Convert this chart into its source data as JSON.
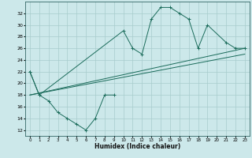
{
  "xlabel": "Humidex (Indice chaleur)",
  "bg_color": "#cce8ea",
  "line_color": "#1a6b5a",
  "grid_color": "#a8cccc",
  "xlim": [
    -0.5,
    23.5
  ],
  "ylim": [
    11,
    34
  ],
  "xticks": [
    0,
    1,
    2,
    3,
    4,
    5,
    6,
    7,
    8,
    9,
    10,
    11,
    12,
    13,
    14,
    15,
    16,
    17,
    18,
    19,
    20,
    21,
    22,
    23
  ],
  "yticks": [
    12,
    14,
    16,
    18,
    20,
    22,
    24,
    26,
    28,
    30,
    32
  ],
  "series": [
    {
      "x": [
        0,
        1,
        2,
        3,
        4,
        5,
        6,
        7,
        8,
        9
      ],
      "y": [
        22,
        18,
        17,
        15,
        14,
        13,
        12,
        14,
        18,
        18
      ],
      "marker": true
    },
    {
      "x": [
        0,
        1,
        10,
        11,
        12,
        13,
        14,
        15,
        16,
        17,
        18,
        19,
        21,
        22,
        23
      ],
      "y": [
        22,
        18,
        29,
        26,
        25,
        31,
        33,
        33,
        32,
        31,
        26,
        30,
        27,
        26,
        26
      ],
      "marker": true
    },
    {
      "x": [
        0,
        23
      ],
      "y": [
        18,
        26
      ],
      "marker": false
    },
    {
      "x": [
        0,
        23
      ],
      "y": [
        18,
        25
      ],
      "marker": false
    }
  ]
}
